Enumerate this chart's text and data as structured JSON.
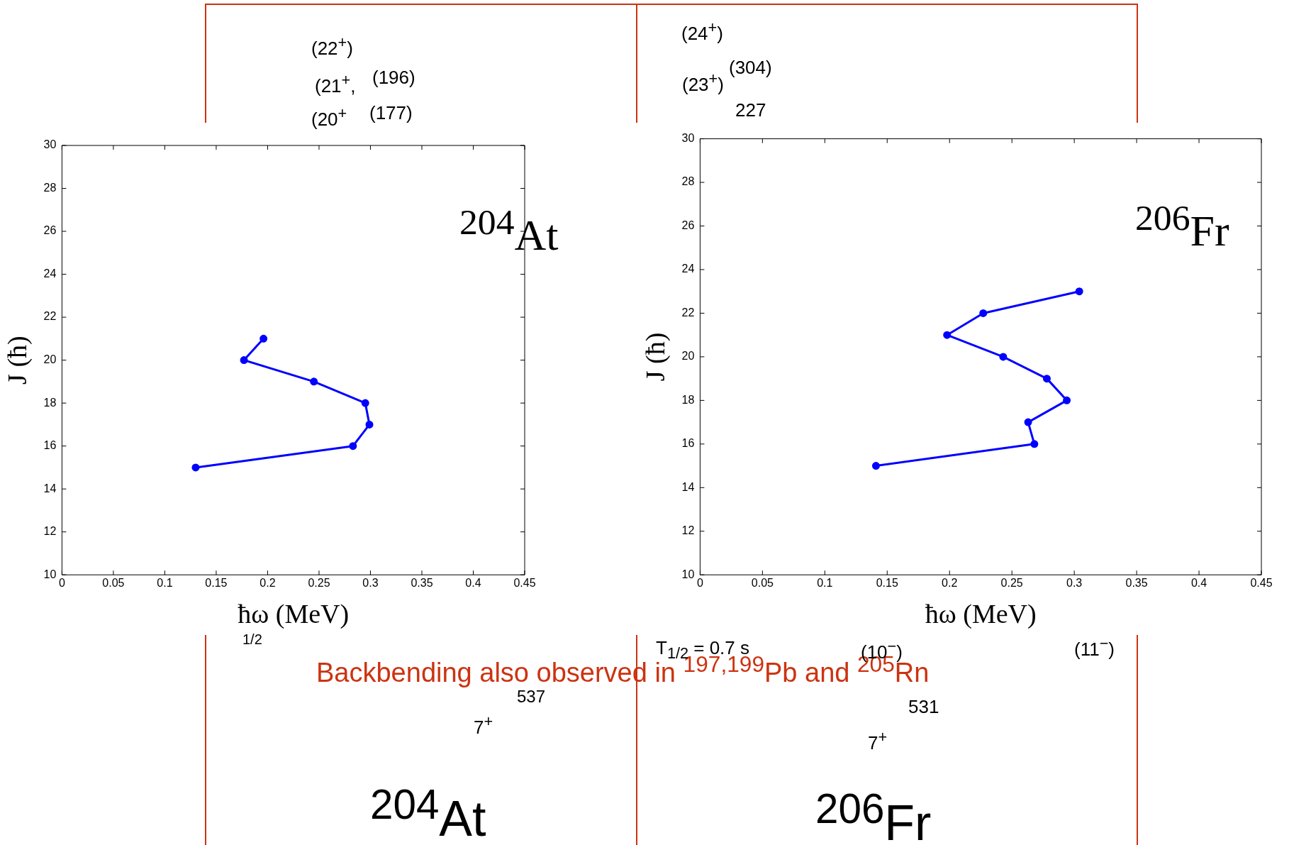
{
  "chart_data": [
    {
      "type": "line",
      "xlabel": "ħω (MeV)",
      "ylabel": "J (ħ)",
      "xlim": [
        0,
        0.45
      ],
      "xticks": [
        0,
        0.05,
        0.1,
        0.15,
        0.2,
        0.25,
        0.3,
        0.35,
        0.4,
        0.45
      ],
      "ylim": [
        10,
        30
      ],
      "yticks": [
        10,
        12,
        14,
        16,
        18,
        20,
        22,
        24,
        26,
        28,
        30
      ],
      "grid": false,
      "legend": false,
      "marker": "circle",
      "line_style": "solid",
      "series": [
        {
          "color": "#0000ff",
          "x": [
            0.13,
            0.283,
            0.299,
            0.295,
            0.245,
            0.177,
            0.196
          ],
          "values": [
            15,
            16,
            17,
            18,
            19,
            20,
            21
          ]
        }
      ],
      "annotations": [
        "$^{204}$At",
        "(22$^{+}$)",
        "(21$^{+}$,",
        "(196)",
        "(20$^{+}$",
        "(177)",
        "1/2",
        "537",
        "7$^{+}$",
        "$^{204}$At",
        "Backbending also observed in $^{197,199}$Pb and $^{205}$Rn"
      ]
    },
    {
      "type": "line",
      "xlabel": "ħω (MeV)",
      "ylabel": "J (ħ)",
      "xlim": [
        0,
        0.45
      ],
      "xticks": [
        0,
        0.05,
        0.1,
        0.15,
        0.2,
        0.25,
        0.3,
        0.35,
        0.4,
        0.45
      ],
      "ylim": [
        10,
        30
      ],
      "yticks": [
        10,
        12,
        14,
        16,
        18,
        20,
        22,
        24,
        26,
        28,
        30
      ],
      "grid": false,
      "legend": false,
      "marker": "circle",
      "line_style": "solid",
      "series": [
        {
          "color": "#0000ff",
          "x": [
            0.141,
            0.268,
            0.263,
            0.294,
            0.278,
            0.243,
            0.198,
            0.227,
            0.304
          ],
          "values": [
            15,
            16,
            17,
            18,
            19,
            20,
            21,
            22,
            23
          ]
        }
      ],
      "annotations": [
        "$^{206}$Fr",
        "(24$^{+}$)",
        "(23$^{+}$)",
        "(304)",
        "227",
        "T$_{1/2}$ = 0.7 s",
        "(10$^{−}$)",
        "(11$^{−}$)",
        "531",
        "7$^{+}$",
        "$^{206}$Fr"
      ]
    }
  ]
}
